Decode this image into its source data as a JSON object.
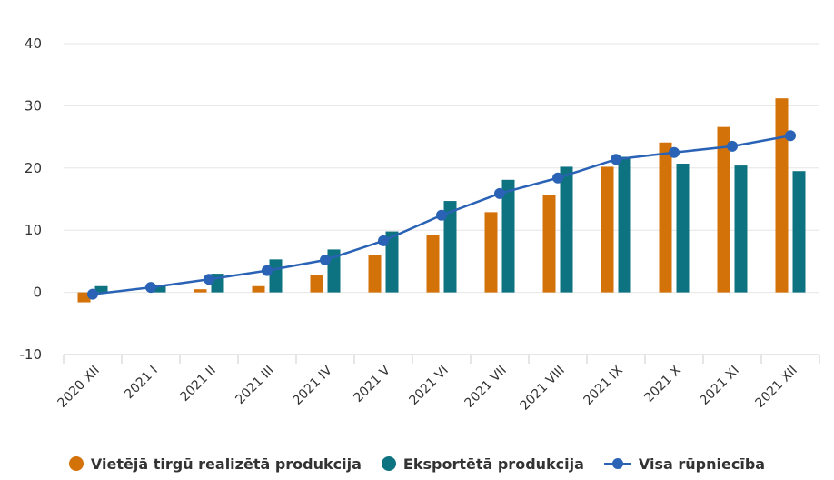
{
  "chart_data": {
    "type": "bar",
    "categories": [
      "2020 XII",
      "2021 I",
      "2021 II",
      "2021 III",
      "2021 IV",
      "2021 V",
      "2021 VI",
      "2021 VII",
      "2021 VIII",
      "2021 IX",
      "2021 X",
      "2021 XI",
      "2021 XII"
    ],
    "series": [
      {
        "name": "Vietējā tirgū realizētā produkcija",
        "type": "bar",
        "color": "#d4720a",
        "values": [
          -1.6,
          0.0,
          0.5,
          1.0,
          2.8,
          6.0,
          9.2,
          12.9,
          15.6,
          20.2,
          24.1,
          26.6,
          31.2
        ]
      },
      {
        "name": "Eksportētā produkcija",
        "type": "bar",
        "color": "#0e7381",
        "values": [
          1.0,
          1.2,
          3.0,
          5.3,
          6.9,
          9.8,
          14.7,
          18.1,
          20.2,
          21.8,
          20.7,
          20.4,
          19.5
        ]
      },
      {
        "name": "Visa rūpniecība",
        "type": "line",
        "color": "#2a62b5",
        "values": [
          -0.3,
          0.8,
          2.1,
          3.5,
          5.2,
          8.3,
          12.4,
          15.9,
          18.4,
          21.4,
          22.5,
          23.5,
          25.2
        ]
      }
    ],
    "yticks": [
      -10,
      0,
      10,
      20,
      30,
      40
    ],
    "ylim": [
      -10,
      40
    ],
    "grid": true,
    "legend_position": "bottom"
  }
}
